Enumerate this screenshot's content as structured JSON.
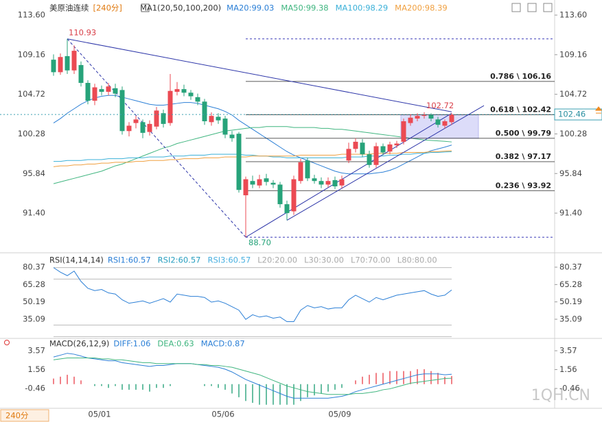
{
  "watermark": "1QH.CN",
  "chart_data": [
    {
      "type": "candlestick",
      "title": "美原油连续",
      "period": "[240分]",
      "period_label": "240分",
      "indicator": "MA1(20,50,100,200)",
      "categories": [
        null,
        null,
        null,
        null,
        null,
        null,
        null,
        "05/01",
        null,
        null,
        null,
        null,
        null,
        null,
        null,
        null,
        null,
        null,
        null,
        null,
        null,
        null,
        null,
        null,
        null,
        "05/06",
        null,
        null,
        null,
        null,
        null,
        null,
        null,
        null,
        null,
        null,
        null,
        null,
        null,
        null,
        null,
        null,
        "05/09",
        null,
        null,
        null,
        null,
        null,
        null,
        null,
        null,
        null,
        null,
        null,
        null,
        null,
        null,
        null,
        null
      ],
      "open": [
        108.6,
        107.2,
        109.0,
        107.4,
        108.0,
        106.0,
        104.0,
        105.3,
        105.0,
        105.4,
        105.2,
        100.6,
        101.5,
        101.6,
        100.5,
        101.1,
        102.6,
        101.5,
        105.0,
        105.3,
        104.9,
        104.4,
        103.9,
        101.6,
        102.2,
        102.0,
        100.2,
        100.3,
        93.4,
        95.0,
        94.5,
        95.3,
        94.8,
        94.6,
        92.4,
        91.6,
        95.0,
        97.3,
        95.3,
        95.0,
        94.6,
        95.1,
        94.5,
        97.3,
        98.6,
        99.3,
        98.0,
        96.8,
        98.9,
        98.3,
        99.0,
        99.4,
        101.5,
        102.0,
        102.3,
        102.4,
        101.9,
        101.2,
        101.6
      ],
      "high": [
        109.2,
        109.3,
        110.93,
        110.2,
        108.4,
        106.3,
        105.9,
        105.7,
        106.0,
        105.9,
        105.6,
        101.6,
        102.3,
        101.9,
        101.8,
        103.3,
        103.0,
        107.0,
        106.1,
        105.8,
        105.2,
        104.8,
        104.2,
        102.7,
        102.6,
        102.3,
        100.6,
        100.5,
        95.5,
        95.6,
        95.7,
        95.8,
        95.1,
        94.9,
        92.8,
        95.6,
        97.5,
        97.6,
        95.7,
        95.4,
        95.4,
        95.5,
        95.6,
        99.3,
        99.8,
        99.7,
        98.4,
        99.3,
        99.2,
        99.4,
        99.5,
        102.0,
        102.5,
        102.6,
        102.72,
        102.6,
        102.2,
        101.9,
        102.6
      ],
      "low": [
        106.8,
        106.9,
        107.0,
        107.0,
        105.6,
        103.6,
        103.5,
        104.6,
        104.6,
        104.4,
        100.2,
        100.0,
        100.9,
        99.8,
        100.1,
        100.8,
        101.0,
        101.2,
        104.6,
        104.5,
        104.1,
        103.5,
        101.3,
        101.2,
        101.4,
        99.8,
        99.4,
        93.7,
        88.7,
        94.2,
        94.2,
        94.5,
        94.2,
        92.0,
        90.6,
        91.2,
        94.7,
        95.0,
        94.7,
        94.2,
        94.3,
        94.1,
        94.2,
        97.0,
        98.2,
        97.7,
        96.5,
        96.5,
        97.9,
        98.0,
        98.7,
        99.1,
        101.2,
        101.7,
        102.0,
        101.7,
        101.0,
        100.9,
        101.3
      ],
      "close": [
        107.2,
        108.9,
        107.4,
        109.6,
        106.0,
        104.0,
        105.5,
        105.0,
        105.6,
        104.8,
        100.6,
        101.2,
        101.9,
        100.4,
        101.4,
        102.9,
        101.4,
        105.1,
        105.3,
        104.9,
        104.5,
        103.9,
        101.7,
        102.3,
        101.8,
        100.2,
        99.8,
        94.0,
        95.2,
        94.6,
        95.2,
        94.9,
        94.6,
        92.4,
        91.4,
        95.2,
        97.1,
        95.3,
        95.0,
        94.6,
        95.0,
        94.4,
        95.2,
        98.6,
        99.4,
        98.0,
        96.8,
        98.9,
        98.2,
        99.1,
        99.2,
        101.7,
        102.1,
        102.3,
        102.4,
        102.0,
        101.3,
        101.7,
        102.46
      ],
      "up_color": "#eb4a53",
      "down_color": "#27a37a",
      "series": [
        {
          "name": "MA20:99.03",
          "color": "#2b7fd6",
          "values": [
            101.5,
            102.0,
            102.6,
            103.1,
            103.6,
            104.0,
            104.3,
            104.5,
            104.6,
            104.6,
            104.4,
            104.2,
            104.0,
            103.8,
            103.6,
            103.5,
            103.5,
            103.6,
            103.7,
            103.8,
            103.8,
            103.7,
            103.5,
            103.3,
            103.1,
            102.8,
            102.4,
            101.8,
            101.3,
            100.8,
            100.3,
            99.8,
            99.3,
            98.8,
            98.3,
            97.9,
            97.6,
            97.3,
            97.0,
            96.7,
            96.4,
            96.1,
            95.9,
            95.8,
            95.8,
            95.8,
            95.8,
            95.9,
            96.0,
            96.2,
            96.5,
            96.9,
            97.3,
            97.7,
            98.1,
            98.4,
            98.6,
            98.8,
            99.03
          ]
        },
        {
          "name": "MA50:99.38",
          "color": "#3fb57f",
          "values": [
            94.7,
            94.9,
            95.1,
            95.3,
            95.5,
            95.7,
            95.9,
            96.1,
            96.4,
            96.7,
            96.9,
            97.2,
            97.5,
            97.8,
            98.1,
            98.4,
            98.7,
            98.9,
            99.2,
            99.4,
            99.6,
            99.8,
            100.0,
            100.2,
            100.4,
            100.6,
            100.7,
            100.8,
            100.9,
            101.0,
            101.0,
            101.1,
            101.1,
            101.1,
            101.1,
            101.0,
            101.0,
            101.0,
            101.0,
            100.9,
            100.9,
            100.8,
            100.8,
            100.7,
            100.6,
            100.5,
            100.4,
            100.3,
            100.2,
            100.1,
            100.0,
            99.9,
            99.8,
            99.7,
            99.6,
            99.55,
            99.5,
            99.45,
            99.38
          ]
        },
        {
          "name": "MA100:98.29",
          "color": "#3ab0d8",
          "values": [
            97.2,
            97.2,
            97.3,
            97.3,
            97.3,
            97.4,
            97.4,
            97.4,
            97.5,
            97.5,
            97.5,
            97.6,
            97.6,
            97.6,
            97.7,
            97.7,
            97.7,
            97.8,
            97.8,
            97.8,
            97.9,
            97.9,
            97.9,
            98.0,
            98.0,
            98.0,
            98.0,
            98.0,
            97.9,
            97.9,
            97.8,
            97.8,
            97.7,
            97.7,
            97.6,
            97.6,
            97.6,
            97.6,
            97.6,
            97.6,
            97.6,
            97.6,
            97.6,
            97.7,
            97.7,
            97.7,
            97.8,
            97.8,
            97.8,
            97.9,
            97.9,
            98.0,
            98.0,
            98.1,
            98.1,
            98.2,
            98.2,
            98.25,
            98.29
          ]
        },
        {
          "name": "MA200:98.39",
          "color": "#f0a040",
          "values": [
            96.6,
            96.7,
            96.7,
            96.8,
            96.8,
            96.9,
            96.9,
            97.0,
            97.0,
            97.1,
            97.1,
            97.1,
            97.2,
            97.2,
            97.3,
            97.3,
            97.3,
            97.4,
            97.4,
            97.5,
            97.5,
            97.5,
            97.6,
            97.6,
            97.6,
            97.7,
            97.7,
            97.7,
            97.7,
            97.8,
            97.8,
            97.8,
            97.8,
            97.8,
            97.8,
            97.8,
            97.9,
            97.9,
            97.9,
            97.9,
            97.9,
            97.9,
            98.0,
            98.0,
            98.0,
            98.0,
            98.0,
            98.1,
            98.1,
            98.1,
            98.1,
            98.2,
            98.2,
            98.2,
            98.2,
            98.3,
            98.3,
            98.35,
            98.39
          ]
        }
      ],
      "ylim": [
        87.26,
        114.14
      ],
      "yticks": [
        {
          "value": 113.6,
          "label": "113.60"
        },
        109.16,
        104.72,
        100.28,
        95.84,
        {
          "value": 91.4,
          "label": "91.40"
        }
      ],
      "fib_levels": [
        {
          "value": 106.16,
          "label": "0.786 \\ 106.16"
        },
        {
          "value": 102.42,
          "label": "0.618 \\ 102.42"
        },
        {
          "value": 99.79,
          "label": "0.500 \\ 99.79"
        },
        {
          "value": 97.17,
          "label": "0.382 \\ 97.17"
        },
        {
          "value": 93.92,
          "label": "0.236 \\ 93.92"
        }
      ],
      "low_annotation": {
        "value": 88.7,
        "label": "88.70"
      }
    },
    {
      "type": "line",
      "title": "RSI(14,14,14)",
      "series": [
        {
          "name": "RSI1:60.57",
          "color": "#2b7fd6",
          "values": [
            80,
            76,
            73,
            77,
            68,
            62,
            60,
            61,
            58,
            57,
            52,
            49,
            50,
            51,
            49,
            51,
            53,
            50,
            57,
            56,
            55,
            55,
            54,
            50,
            51,
            49,
            46,
            43,
            35,
            39,
            37,
            38,
            36,
            37,
            33,
            33,
            43,
            47,
            45,
            46,
            44,
            45,
            45,
            52,
            56,
            53,
            50,
            54,
            52,
            54,
            56,
            57,
            58,
            59,
            60,
            57,
            55,
            56,
            60.57
          ]
        }
      ],
      "extra_labels": [
        {
          "text": "RSI2:60.57",
          "color": "#2a9fc0"
        },
        {
          "text": "RSI3:60.57",
          "color": "#4ab0e0"
        }
      ],
      "levels": [
        {
          "value": 20,
          "label": "L20:20.00"
        },
        {
          "value": 30,
          "label": "L30:30.00"
        },
        {
          "value": 70,
          "label": "L70:70.00"
        },
        {
          "value": 80,
          "label": "L80:80.00"
        }
      ],
      "ylim": [
        19.6,
        91.1
      ],
      "yticks": [
        80.37,
        65.28,
        50.19,
        35.09
      ]
    },
    {
      "type": "macd",
      "title": "MACD(26,12,9)",
      "series": [
        {
          "name": "DIFF:1.06",
          "color": "#2b7fd6",
          "values": [
            2.9,
            3.1,
            3.3,
            3.2,
            3.0,
            2.8,
            2.7,
            2.6,
            2.5,
            2.5,
            2.3,
            2.2,
            2.1,
            2.0,
            1.9,
            2.0,
            2.0,
            2.1,
            2.2,
            2.2,
            2.2,
            2.1,
            2.0,
            1.9,
            1.8,
            1.6,
            1.3,
            0.9,
            0.5,
            0.2,
            -0.1,
            -0.4,
            -0.7,
            -1.0,
            -1.3,
            -1.5,
            -1.5,
            -1.5,
            -1.5,
            -1.5,
            -1.5,
            -1.4,
            -1.3,
            -1.1,
            -0.8,
            -0.6,
            -0.4,
            -0.2,
            0.0,
            0.2,
            0.4,
            0.6,
            0.8,
            1.0,
            1.1,
            1.1,
            1.1,
            1.0,
            1.06
          ]
        },
        {
          "name": "DEA:0.63",
          "color": "#3fb57f",
          "values": [
            2.6,
            2.7,
            2.8,
            2.8,
            2.8,
            2.8,
            2.8,
            2.7,
            2.7,
            2.6,
            2.6,
            2.5,
            2.4,
            2.3,
            2.3,
            2.2,
            2.2,
            2.2,
            2.2,
            2.2,
            2.2,
            2.1,
            2.1,
            2.0,
            2.0,
            1.9,
            1.8,
            1.6,
            1.4,
            1.2,
            1.0,
            0.7,
            0.4,
            0.1,
            -0.2,
            -0.4,
            -0.6,
            -0.8,
            -0.9,
            -1.0,
            -1.1,
            -1.1,
            -1.1,
            -1.1,
            -1.0,
            -1.0,
            -0.9,
            -0.8,
            -0.6,
            -0.5,
            -0.3,
            -0.1,
            0.1,
            0.2,
            0.3,
            0.4,
            0.5,
            0.6,
            0.63
          ]
        }
      ],
      "histogram": {
        "name": "MACD:0.87",
        "color": "#2b7fd6",
        "values": [
          0.6,
          0.8,
          1.0,
          0.8,
          0.4,
          0.0,
          -0.2,
          -0.2,
          -0.4,
          -0.2,
          -0.6,
          -0.6,
          -0.6,
          -0.6,
          -0.8,
          -0.4,
          -0.4,
          -0.2,
          0.0,
          0.0,
          0.0,
          0.0,
          -0.2,
          -0.2,
          -0.4,
          -0.6,
          -1.0,
          -1.4,
          -1.8,
          -2.0,
          -2.2,
          -2.2,
          -2.2,
          -2.2,
          -2.2,
          -2.2,
          -1.8,
          -1.4,
          -1.2,
          -1.0,
          -0.8,
          -0.6,
          -0.4,
          0.0,
          0.4,
          0.8,
          1.0,
          1.2,
          1.2,
          1.4,
          1.4,
          1.4,
          1.4,
          1.6,
          1.6,
          1.4,
          1.2,
          0.8,
          0.87
        ]
      },
      "ylim": [
        -2.29,
        4.67
      ],
      "yticks": [
        3.57,
        1.56,
        -0.46
      ]
    }
  ]
}
